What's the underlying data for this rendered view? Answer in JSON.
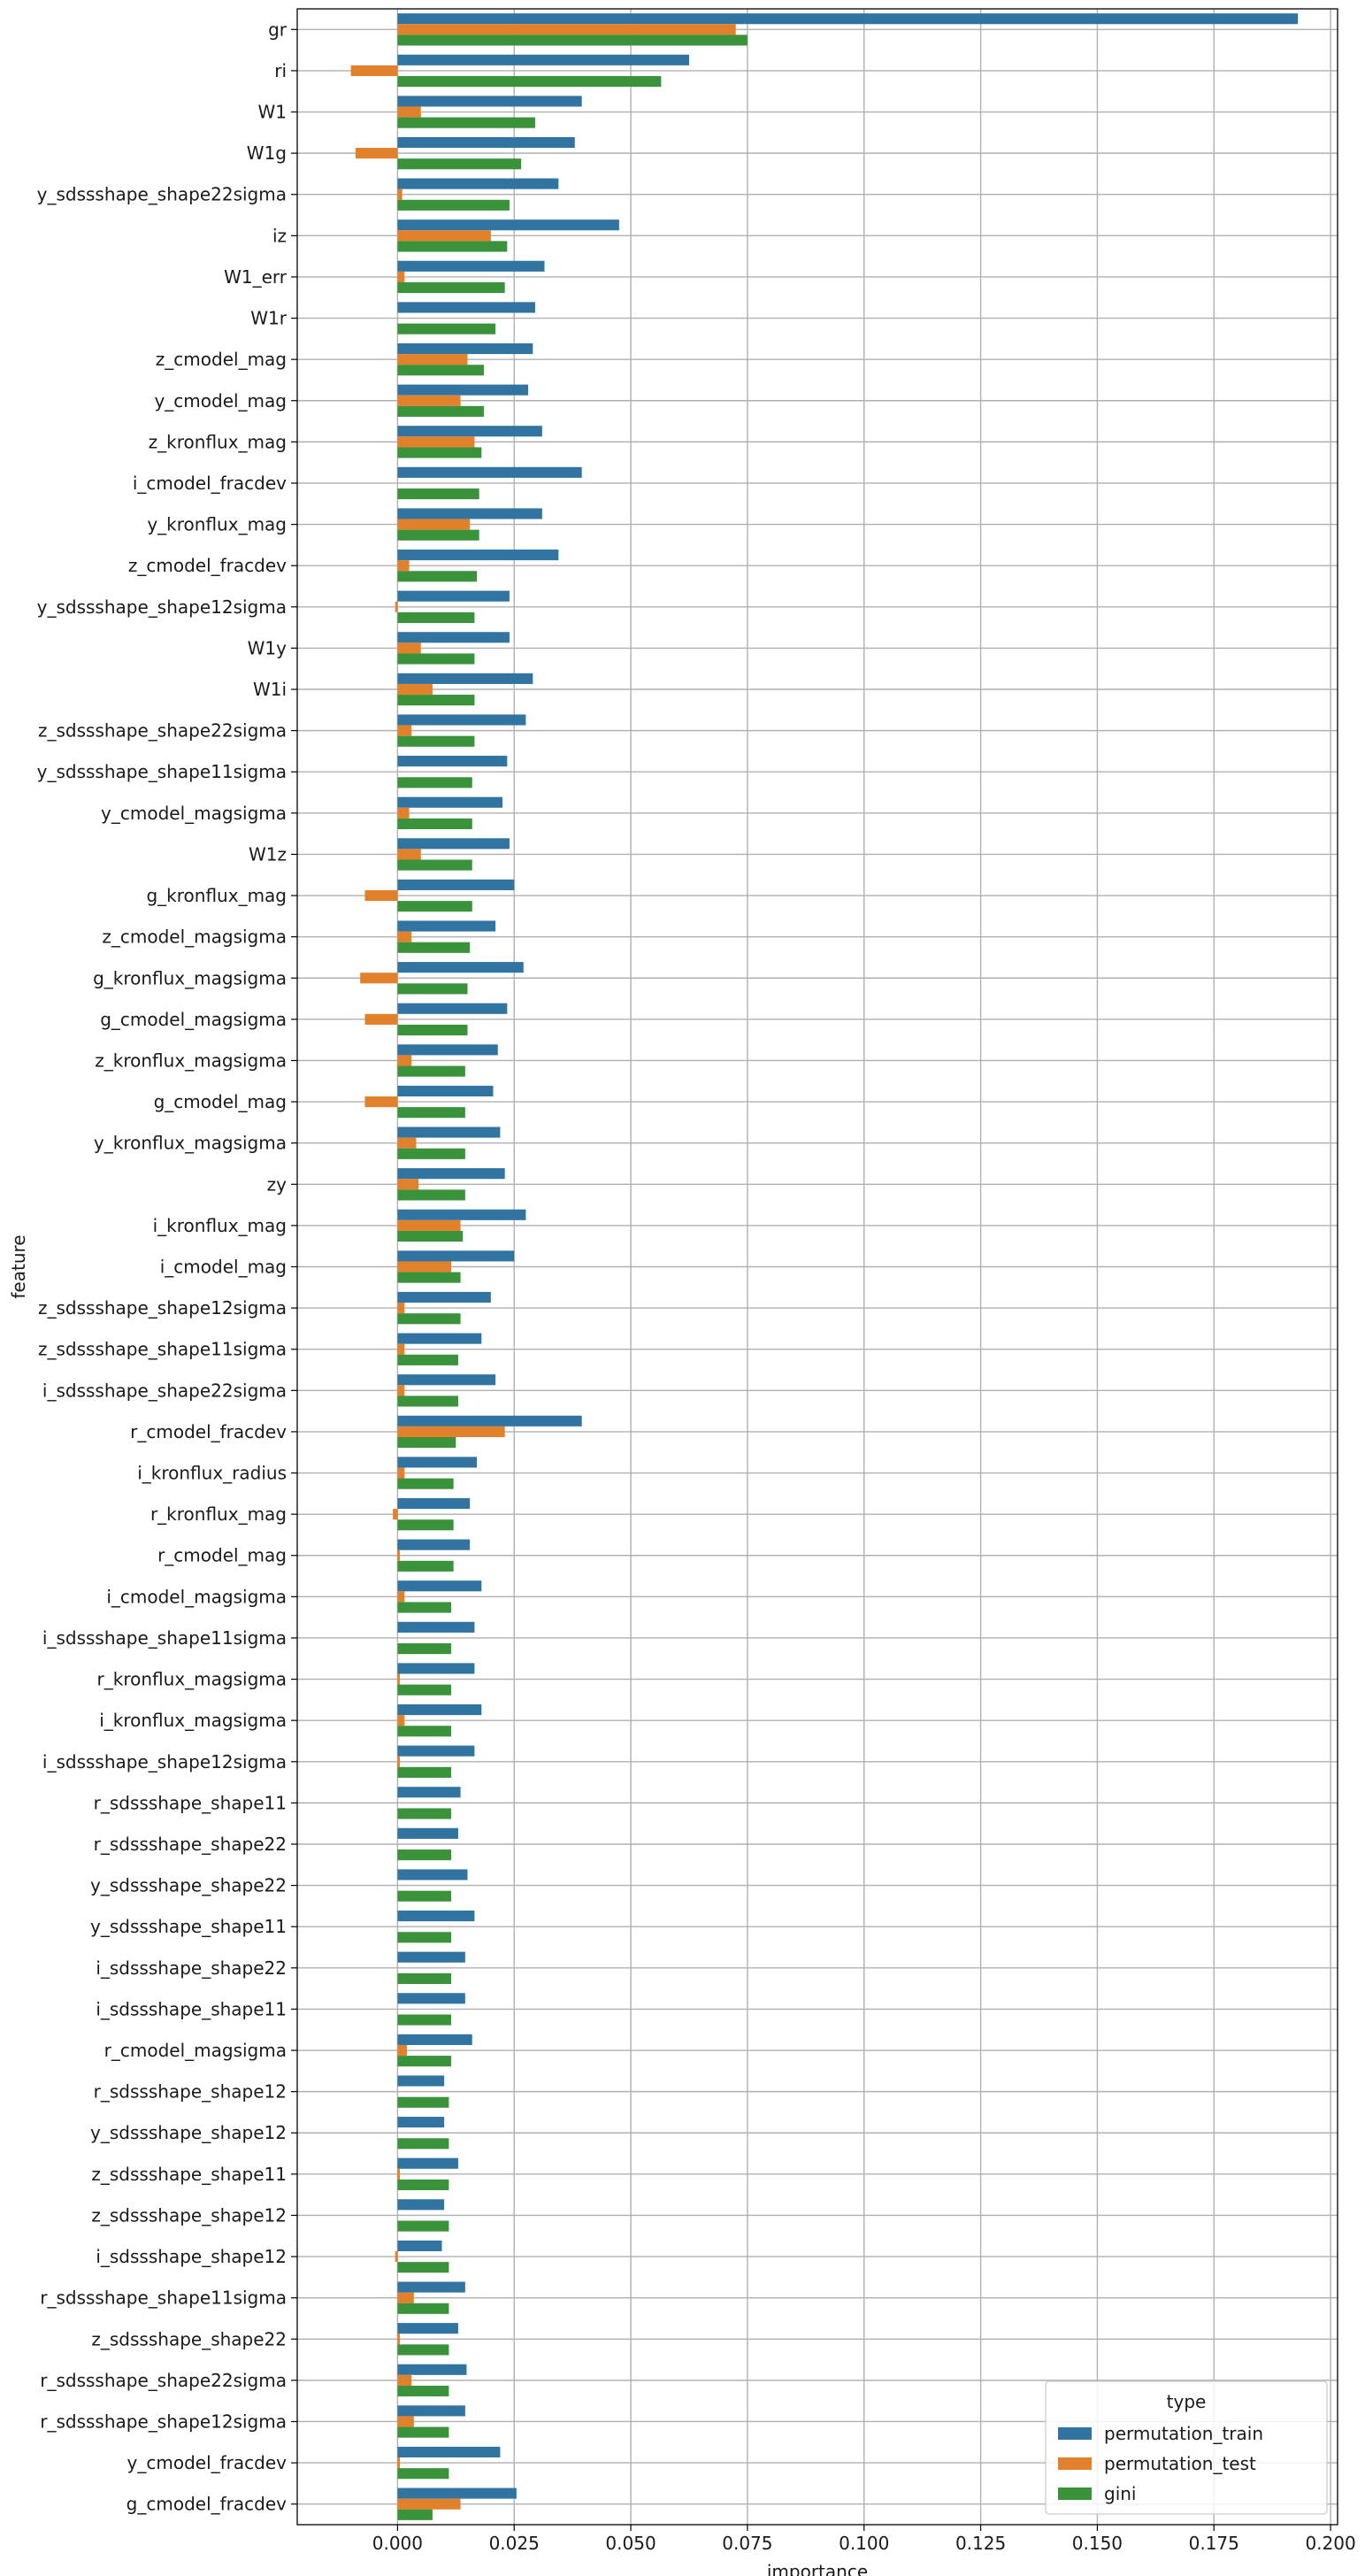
{
  "chart_data": {
    "type": "bar",
    "orientation": "horizontal",
    "title": "",
    "xlabel": "importance",
    "ylabel": "feature",
    "xlim": [
      -0.0215,
      0.2015
    ],
    "xticks": [
      0.0,
      0.025,
      0.05,
      0.075,
      0.1,
      0.125,
      0.15,
      0.175,
      0.2
    ],
    "xtick_labels": [
      "0.000",
      "0.025",
      "0.050",
      "0.075",
      "0.100",
      "0.125",
      "0.150",
      "0.175",
      "0.200"
    ],
    "grid": true,
    "legend": {
      "title": "type",
      "position": "bottom-right"
    },
    "categories": [
      "gr",
      "ri",
      "W1",
      "W1g",
      "y_sdssshape_shape22sigma",
      "iz",
      "W1_err",
      "W1r",
      "z_cmodel_mag",
      "y_cmodel_mag",
      "z_kronflux_mag",
      "i_cmodel_fracdev",
      "y_kronflux_mag",
      "z_cmodel_fracdev",
      "y_sdssshape_shape12sigma",
      "W1y",
      "W1i",
      "z_sdssshape_shape22sigma",
      "y_sdssshape_shape11sigma",
      "y_cmodel_magsigma",
      "W1z",
      "g_kronflux_mag",
      "z_cmodel_magsigma",
      "g_kronflux_magsigma",
      "g_cmodel_magsigma",
      "z_kronflux_magsigma",
      "g_cmodel_mag",
      "y_kronflux_magsigma",
      "zy",
      "i_kronflux_mag",
      "i_cmodel_mag",
      "z_sdssshape_shape12sigma",
      "z_sdssshape_shape11sigma",
      "i_sdssshape_shape22sigma",
      "r_cmodel_fracdev",
      "i_kronflux_radius",
      "r_kronflux_mag",
      "r_cmodel_mag",
      "i_cmodel_magsigma",
      "i_sdssshape_shape11sigma",
      "r_kronflux_magsigma",
      "i_kronflux_magsigma",
      "i_sdssshape_shape12sigma",
      "r_sdssshape_shape11",
      "r_sdssshape_shape22",
      "y_sdssshape_shape22",
      "y_sdssshape_shape11",
      "i_sdssshape_shape22",
      "i_sdssshape_shape11",
      "r_cmodel_magsigma",
      "r_sdssshape_shape12",
      "y_sdssshape_shape12",
      "z_sdssshape_shape11",
      "z_sdssshape_shape12",
      "i_sdssshape_shape12",
      "r_sdssshape_shape11sigma",
      "z_sdssshape_shape22",
      "r_sdssshape_shape22sigma",
      "r_sdssshape_shape12sigma",
      "y_cmodel_fracdev",
      "g_cmodel_fracdev"
    ],
    "series": [
      {
        "name": "permutation_train",
        "color": "#3274a1",
        "values": [
          0.193,
          0.0625,
          0.0395,
          0.038,
          0.0345,
          0.0475,
          0.0315,
          0.0295,
          0.029,
          0.028,
          0.031,
          0.0395,
          0.031,
          0.0345,
          0.024,
          0.024,
          0.029,
          0.0275,
          0.0235,
          0.0225,
          0.024,
          0.025,
          0.021,
          0.027,
          0.0235,
          0.0215,
          0.0205,
          0.022,
          0.023,
          0.0275,
          0.025,
          0.02,
          0.018,
          0.021,
          0.0395,
          0.017,
          0.0155,
          0.0155,
          0.018,
          0.0165,
          0.0165,
          0.018,
          0.0165,
          0.0135,
          0.013,
          0.015,
          0.0165,
          0.0145,
          0.0145,
          0.016,
          0.01,
          0.01,
          0.013,
          0.01,
          0.0095,
          0.0145,
          0.013,
          0.0148,
          0.0145,
          0.022,
          0.0255
        ]
      },
      {
        "name": "permutation_test",
        "color": "#e1812c",
        "values": [
          0.0725,
          -0.01,
          0.005,
          -0.009,
          0.001,
          0.02,
          0.0015,
          0.0,
          0.015,
          0.0135,
          0.0165,
          0.0,
          0.0155,
          0.0025,
          -0.0005,
          0.005,
          0.0075,
          0.003,
          0.0,
          0.0025,
          0.005,
          -0.007,
          0.003,
          -0.008,
          -0.007,
          0.003,
          -0.007,
          0.004,
          0.0045,
          0.0135,
          0.0115,
          0.0015,
          0.0015,
          0.0015,
          0.023,
          0.0015,
          -0.001,
          0.0005,
          0.0015,
          0.0,
          0.0005,
          0.0015,
          0.0005,
          0.0,
          0.0,
          0.0,
          0.0,
          0.0,
          0.0,
          0.002,
          0.0,
          0.0,
          0.0005,
          0.0,
          -0.0005,
          0.0035,
          0.0005,
          0.003,
          0.0035,
          0.0005,
          0.0135
        ]
      },
      {
        "name": "gini",
        "color": "#3a923a",
        "values": [
          0.075,
          0.0565,
          0.0295,
          0.0265,
          0.024,
          0.0235,
          0.023,
          0.021,
          0.0185,
          0.0185,
          0.018,
          0.0175,
          0.0175,
          0.017,
          0.0165,
          0.0165,
          0.0165,
          0.0165,
          0.016,
          0.016,
          0.016,
          0.016,
          0.0155,
          0.015,
          0.015,
          0.0145,
          0.0145,
          0.0145,
          0.0145,
          0.014,
          0.0135,
          0.0135,
          0.013,
          0.013,
          0.0125,
          0.012,
          0.012,
          0.012,
          0.0115,
          0.0115,
          0.0115,
          0.0115,
          0.0115,
          0.0115,
          0.0115,
          0.0115,
          0.0115,
          0.0115,
          0.0115,
          0.0115,
          0.011,
          0.011,
          0.011,
          0.011,
          0.011,
          0.011,
          0.011,
          0.011,
          0.011,
          0.011,
          0.0075
        ]
      }
    ]
  }
}
